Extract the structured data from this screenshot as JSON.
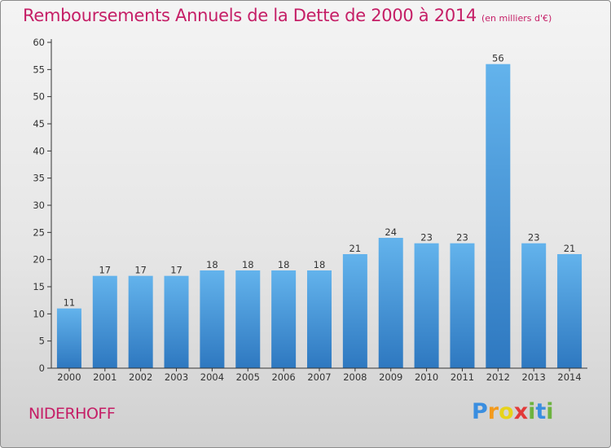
{
  "header": {
    "title": "Remboursements Annuels de la Dette de 2000 à 2014",
    "subtitle": "(en milliers d'€)"
  },
  "footer": {
    "commune": "NIDERHOFF",
    "brand": "Proxiti"
  },
  "colors": {
    "title": "#c51e66",
    "bar_top": "#63b3ec",
    "bar_bottom": "#2e78c0",
    "axis": "#333333",
    "grid": "#bdbdbd"
  },
  "chart_data": {
    "type": "bar",
    "categories": [
      "2000",
      "2001",
      "2002",
      "2003",
      "2004",
      "2005",
      "2006",
      "2007",
      "2008",
      "2009",
      "2010",
      "2011",
      "2012",
      "2013",
      "2014"
    ],
    "values": [
      11,
      17,
      17,
      17,
      18,
      18,
      18,
      18,
      21,
      24,
      23,
      23,
      56,
      23,
      21
    ],
    "ylim": [
      0,
      60
    ],
    "yticks": [
      0,
      5,
      10,
      15,
      20,
      25,
      30,
      35,
      40,
      45,
      50,
      55,
      60
    ],
    "grid": false,
    "data_labels": true
  }
}
